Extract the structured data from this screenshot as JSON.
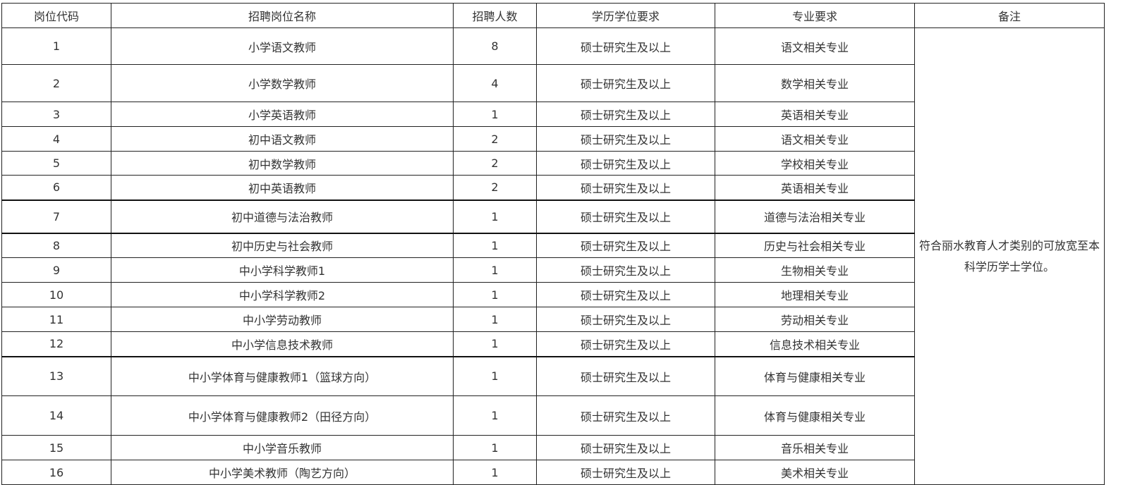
{
  "headers": [
    "岗位代码",
    "招聘岗位名称",
    "招聘人数",
    "学历学位要求",
    "专业要求",
    "备注"
  ],
  "rows": [
    {
      "code": "1",
      "name": "小学语文教师",
      "count": "8",
      "degree": "硕士研究生及以上",
      "major": "语文相关专业"
    },
    {
      "code": "2",
      "name": "小学数学教师",
      "count": "4",
      "degree": "硕士研究生及以上",
      "major": "数学相关专业"
    },
    {
      "code": "3",
      "name": "小学英语教师",
      "count": "1",
      "degree": "硕士研究生及以上",
      "major": "英语相关专业"
    },
    {
      "code": "4",
      "name": "初中语文教师",
      "count": "2",
      "degree": "硕士研究生及以上",
      "major": "语文相关专业"
    },
    {
      "code": "5",
      "name": "初中数学教师",
      "count": "2",
      "degree": "硕士研究生及以上",
      "major": "学校相关专业"
    },
    {
      "code": "6",
      "name": "初中英语教师",
      "count": "2",
      "degree": "硕士研究生及以上",
      "major": "英语相关专业"
    },
    {
      "code": "7",
      "name": "初中道德与法治教师",
      "count": "1",
      "degree": "硕士研究生及以上",
      "major": "道德与法治相关专业"
    },
    {
      "code": "8",
      "name": "初中历史与社会教师",
      "count": "1",
      "degree": "硕士研究生及以上",
      "major": "历史与社会相关专业"
    },
    {
      "code": "9",
      "name": "中小学科学教师1",
      "count": "1",
      "degree": "硕士研究生及以上",
      "major": "生物相关专业"
    },
    {
      "code": "10",
      "name": "中小学科学教师2",
      "count": "1",
      "degree": "硕士研究生及以上",
      "major": "地理相关专业"
    },
    {
      "code": "11",
      "name": "中小学劳动教师",
      "count": "1",
      "degree": "硕士研究生及以上",
      "major": "劳动相关专业"
    },
    {
      "code": "12",
      "name": "中小学信息技术教师",
      "count": "1",
      "degree": "硕士研究生及以上",
      "major": "信息技术相关专业"
    },
    {
      "code": "13",
      "name": "中小学体育与健康教师1（篮球方向）",
      "count": "1",
      "degree": "硕士研究生及以上",
      "major": "体育与健康相关专业"
    },
    {
      "code": "14",
      "name": "中小学体育与健康教师2（田径方向）",
      "count": "1",
      "degree": "硕士研究生及以上",
      "major": "体育与健康相关专业"
    },
    {
      "code": "15",
      "name": "中小学音乐教师",
      "count": "1",
      "degree": "硕士研究生及以上",
      "major": "音乐相关专业"
    },
    {
      "code": "16",
      "name": "中小学美术教师（陶艺方向）",
      "count": "1",
      "degree": "硕士研究生及以上",
      "major": "美术相关专业"
    }
  ],
  "remark": "符合丽水教育人才类别的可放宽至本科学历学士学位。"
}
